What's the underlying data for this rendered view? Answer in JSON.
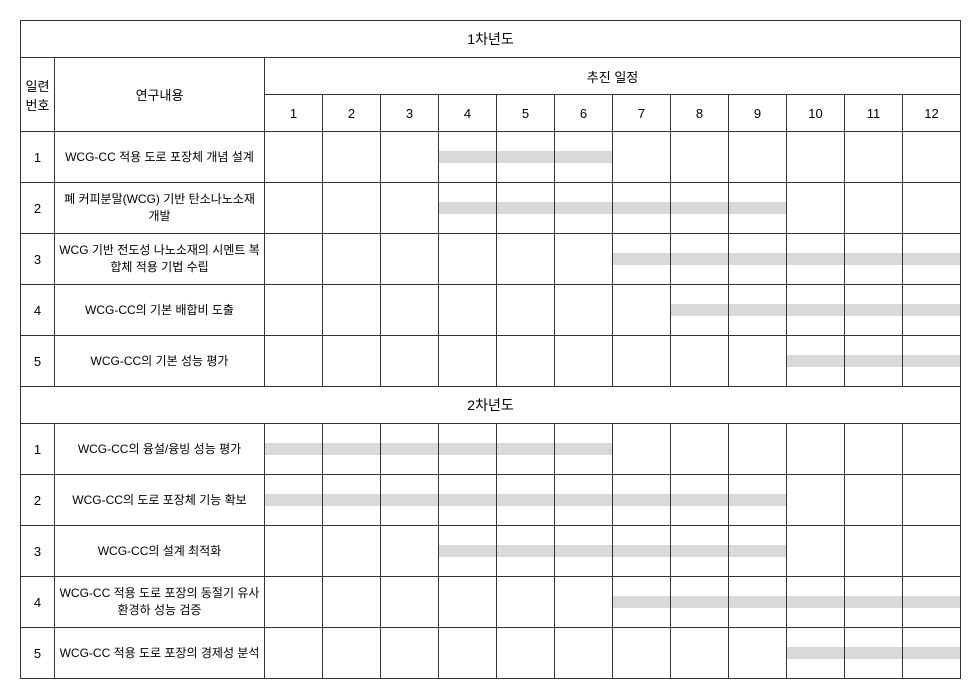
{
  "colors": {
    "border": "#333333",
    "bar": "#d9d9d9",
    "background": "#ffffff",
    "text": "#000000"
  },
  "headers": {
    "serial": "일련\n번호",
    "content": "연구내용",
    "schedule": "추진 일정",
    "months": [
      "1",
      "2",
      "3",
      "4",
      "5",
      "6",
      "7",
      "8",
      "9",
      "10",
      "11",
      "12"
    ]
  },
  "years": [
    {
      "title": "1차년도",
      "rows": [
        {
          "num": "1",
          "label": "WCG-CC 적용 도로 포장체 개념 설계",
          "start": 4,
          "end": 6
        },
        {
          "num": "2",
          "label": "폐 커피분말(WCG) 기반 탄소나노소재 개발",
          "start": 4,
          "end": 9
        },
        {
          "num": "3",
          "label": "WCG 기반 전도성 나노소재의 시멘트 복합체 적용 기법 수립",
          "start": 7,
          "end": 12
        },
        {
          "num": "4",
          "label": "WCG-CC의 기본 배합비 도출",
          "start": 8,
          "end": 12
        },
        {
          "num": "5",
          "label": "WCG-CC의 기본 성능 평가",
          "start": 10,
          "end": 12
        }
      ]
    },
    {
      "title": "2차년도",
      "rows": [
        {
          "num": "1",
          "label": "WCG-CC의 융설/융빙 성능 평가",
          "start": 1,
          "end": 6
        },
        {
          "num": "2",
          "label": "WCG-CC의 도로 포장체 기능 확보",
          "start": 1,
          "end": 9
        },
        {
          "num": "3",
          "label": "WCG-CC의 설계 최적화",
          "start": 4,
          "end": 9
        },
        {
          "num": "4",
          "label": "WCG-CC 적용 도로 포장의 동절기 유사 환경하 성능 검증",
          "start": 7,
          "end": 12
        },
        {
          "num": "5",
          "label": "WCG-CC 적용 도로 포장의 경제성 분석",
          "start": 10,
          "end": 12
        }
      ]
    }
  ]
}
